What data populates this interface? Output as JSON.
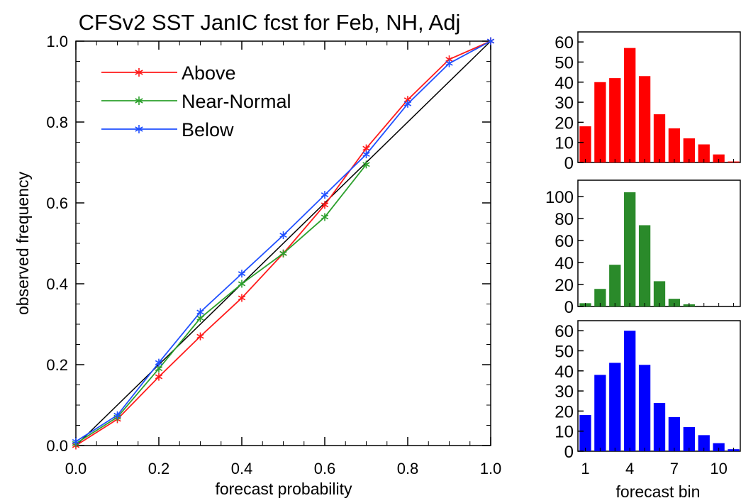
{
  "chart_data": [
    {
      "type": "line",
      "title": "CFSv2 SST JanIC fcst for Feb, NH, Adj",
      "xlabel": "forecast probability",
      "ylabel": "observed frequency",
      "xlim": [
        0,
        1
      ],
      "ylim": [
        0,
        1
      ],
      "xticks": [
        "0.0",
        "0.2",
        "0.4",
        "0.6",
        "0.8",
        "1.0"
      ],
      "yticks": [
        "0.0",
        "0.2",
        "0.4",
        "0.6",
        "0.8",
        "1.0"
      ],
      "legend_position": "top-left",
      "grid": false,
      "diagonal_color": "#000000",
      "series": [
        {
          "name": "Above",
          "color": "#ff1a1a",
          "x": [
            0.0,
            0.1,
            0.2,
            0.3,
            0.4,
            0.5,
            0.6,
            0.7,
            0.8,
            0.9,
            1.0
          ],
          "y": [
            0.0,
            0.065,
            0.17,
            0.27,
            0.365,
            0.475,
            0.595,
            0.735,
            0.855,
            0.955,
            1.0
          ]
        },
        {
          "name": "Near-Normal",
          "color": "#2ca02c",
          "x": [
            0.0,
            0.1,
            0.2,
            0.3,
            0.4,
            0.5,
            0.6,
            0.7
          ],
          "y": [
            0.005,
            0.07,
            0.19,
            0.315,
            0.4,
            0.475,
            0.565,
            0.695
          ]
        },
        {
          "name": "Below",
          "color": "#1f4fff",
          "x": [
            0.0,
            0.1,
            0.2,
            0.3,
            0.4,
            0.5,
            0.6,
            0.7,
            0.8,
            0.9,
            1.0
          ],
          "y": [
            0.01,
            0.075,
            0.205,
            0.33,
            0.425,
            0.52,
            0.62,
            0.72,
            0.845,
            0.945,
            1.0
          ]
        }
      ]
    },
    {
      "type": "bar",
      "color": "#ff0000",
      "categories": [
        1,
        2,
        3,
        4,
        5,
        6,
        7,
        8,
        9,
        10,
        11
      ],
      "values": [
        18,
        40,
        42,
        57,
        43,
        24,
        17,
        12,
        9,
        4,
        0.5
      ],
      "ylim": [
        0,
        65
      ],
      "yticks": [
        "0",
        "10",
        "20",
        "30",
        "40",
        "50",
        "60"
      ]
    },
    {
      "type": "bar",
      "color": "#2a8a2a",
      "categories": [
        1,
        2,
        3,
        4,
        5,
        6,
        7,
        8,
        9,
        10,
        11
      ],
      "values": [
        3,
        16,
        38,
        104,
        74,
        23,
        7,
        2,
        0,
        0,
        0
      ],
      "ylim": [
        0,
        115
      ],
      "yticks": [
        "0",
        "20",
        "40",
        "60",
        "80",
        "100"
      ]
    },
    {
      "type": "bar",
      "color": "#0000ff",
      "categories": [
        1,
        2,
        3,
        4,
        5,
        6,
        7,
        8,
        9,
        10,
        11
      ],
      "values": [
        18,
        38,
        44,
        60,
        43,
        24,
        17,
        12,
        8,
        4,
        1
      ],
      "ylim": [
        0,
        65
      ],
      "yticks": [
        "0",
        "10",
        "20",
        "30",
        "40",
        "50",
        "60"
      ],
      "xlabel": "forecast bin",
      "xticks": [
        "1",
        "4",
        "7",
        "10"
      ],
      "xtick_positions": [
        1,
        4,
        7,
        10
      ]
    }
  ]
}
